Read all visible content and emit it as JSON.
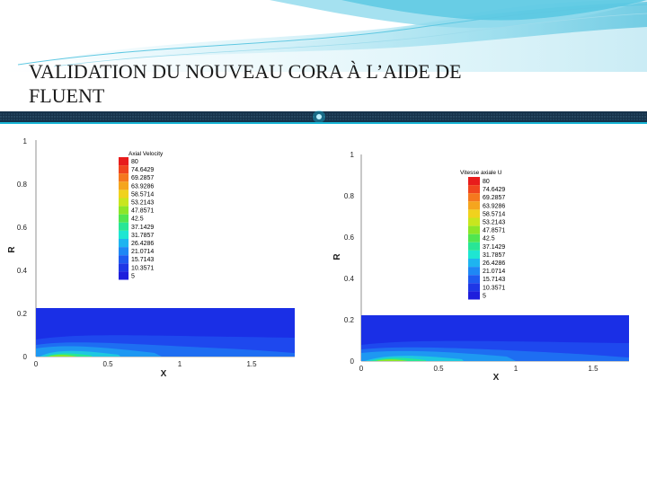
{
  "slide": {
    "title_line1": "VALIDATION DU NOUVEAU CORA À L’AIDE DE",
    "title_line2": "FLUENT"
  },
  "colors": {
    "accent_cyan": "#19b6d6",
    "divider_dark": "#16324a",
    "field_blue": "#1a33e6"
  },
  "left_plot": {
    "legend_title": "Axial Velocity",
    "legend_levels": [
      "80",
      "74.6429",
      "69.2857",
      "63.9286",
      "58.5714",
      "53.2143",
      "47.8571",
      "42.5",
      "37.1429",
      "31.7857",
      "26.4286",
      "21.0714",
      "15.7143",
      "10.3571",
      "5"
    ],
    "x_label": "X",
    "y_label": "R",
    "x_ticks": [
      "0",
      "0.5",
      "1",
      "1.5"
    ],
    "y_ticks": [
      "0",
      "0.2",
      "0.4",
      "0.6",
      "0.8",
      "1"
    ]
  },
  "right_plot": {
    "legend_title": "Vitesse axiale U",
    "legend_levels": [
      "80",
      "74.6429",
      "69.2857",
      "63.9286",
      "58.5714",
      "53.2143",
      "47.8571",
      "42.5",
      "37.1429",
      "31.7857",
      "26.4286",
      "21.0714",
      "15.7143",
      "10.3571",
      "5"
    ],
    "x_label": "X",
    "y_label": "R",
    "x_ticks": [
      "0",
      "0.5",
      "1",
      "1.5"
    ],
    "y_ticks": [
      "0",
      "0.2",
      "0.4",
      "0.6",
      "0.8",
      "1"
    ]
  },
  "legend_colors": [
    "#e81c1c",
    "#f0461e",
    "#f5781e",
    "#f5a51e",
    "#f0d21e",
    "#c8e61e",
    "#8ce628",
    "#50e650",
    "#28e696",
    "#1ee6d2",
    "#1eb4f0",
    "#1e87f5",
    "#1e5af0",
    "#1e37e6",
    "#1e1edc"
  ]
}
